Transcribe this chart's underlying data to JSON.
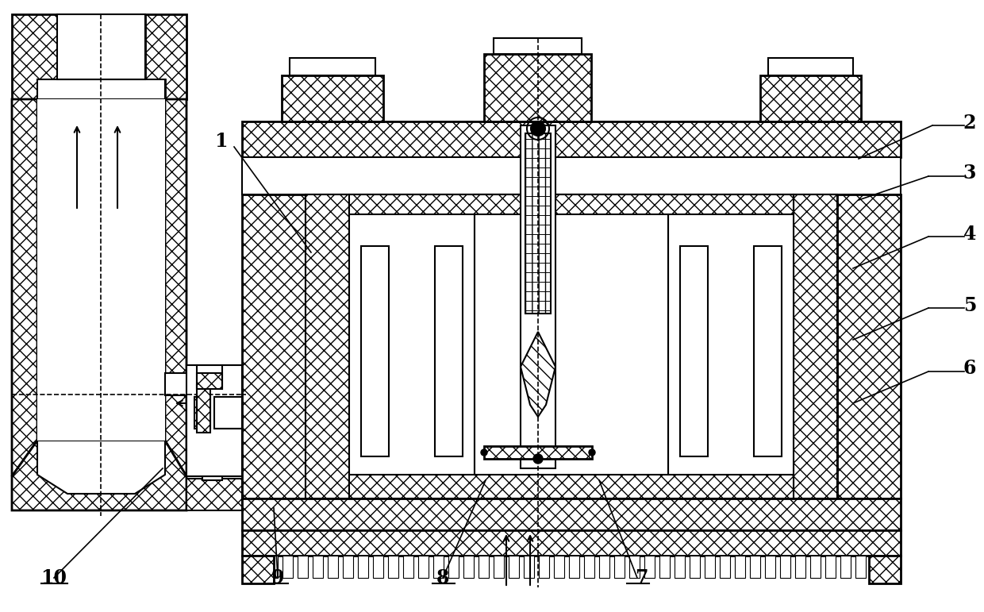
{
  "bg_color": "#ffffff",
  "line_color": "#000000",
  "figsize": [
    12.4,
    7.71
  ],
  "dpi": 100
}
